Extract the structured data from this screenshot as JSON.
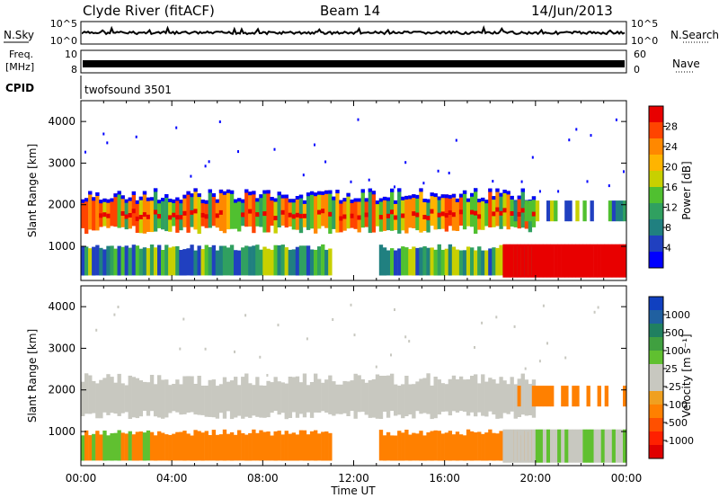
{
  "header": {
    "station": "Clyde River (fitACF)",
    "beam": "Beam 14",
    "date": "14/Jun/2013"
  },
  "noise_panel": {
    "left_label": "N.Sky",
    "right_label": "N.Search",
    "ytick_top_left": "10^5",
    "ytick_bottom_left": "10^0",
    "ytick_top_right": "10^5",
    "ytick_bottom_right": "10^0"
  },
  "freq_panel": {
    "left_label_line1": "Freq.",
    "left_label_line2": "[MHz]",
    "right_label": "Nave",
    "ytick_left_top": "10",
    "ytick_left_bottom": "8",
    "ytick_right_top": "60",
    "ytick_right_bottom": "0"
  },
  "cpid_panel": {
    "label": "CPID",
    "program": "twofsound 3501"
  },
  "power_colorbar": {
    "title": "Power [dB]",
    "ticks": [
      "28",
      "24",
      "20",
      "16",
      "12",
      "8",
      "4"
    ],
    "colors": [
      "#e80000",
      "#ff4400",
      "#ff8800",
      "#ffb400",
      "#c8d000",
      "#50c030",
      "#30a060",
      "#208080",
      "#2040c0",
      "#0000ff"
    ]
  },
  "velocity_colorbar": {
    "title": "Velocity [m s⁻¹]",
    "ticks": [
      "1000",
      "500",
      "100",
      "25",
      "-25",
      "-100",
      "-500",
      "-1000"
    ],
    "colors": [
      "#1040c0",
      "#2060a0",
      "#208060",
      "#40a040",
      "#60c030",
      "#c8c8c0",
      "#c8c8c0",
      "#f0a020",
      "#ff8000",
      "#ff5000",
      "#ff2000",
      "#e00000"
    ]
  },
  "chart_data": [
    {
      "type": "heatmap",
      "name": "power",
      "xlabel": "",
      "ylabel": "Slant Range [km]",
      "xlim": [
        "00:00",
        "24:00"
      ],
      "ylim": [
        180,
        4500
      ],
      "yticks": [
        "1000",
        "2000",
        "3000",
        "4000"
      ],
      "legend": "right colorbar"
    },
    {
      "type": "heatmap",
      "name": "velocity",
      "xlabel": "Time UT",
      "ylabel": "Slant Range [km]",
      "xlim": [
        "00:00",
        "24:00"
      ],
      "ylim": [
        180,
        4500
      ],
      "xticks": [
        "00:00",
        "04:00",
        "08:00",
        "12:00",
        "16:00",
        "20:00",
        "00:00"
      ],
      "yticks": [
        "1000",
        "2000",
        "3000",
        "4000"
      ],
      "legend": "right colorbar"
    }
  ]
}
